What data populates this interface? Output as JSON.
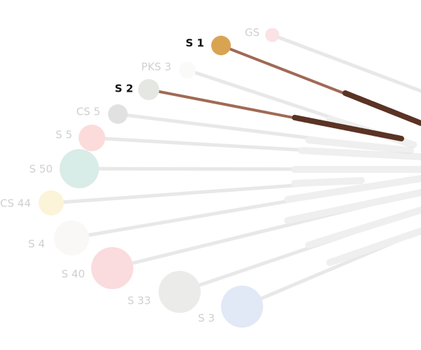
{
  "mallets": [
    "GS",
    "S 1",
    "PKS 3",
    "S 2",
    "CS 5",
    "S 5",
    "S 50",
    "CS 44",
    "S 4",
    "S 40",
    "S 33",
    "S 3"
  ]
}
